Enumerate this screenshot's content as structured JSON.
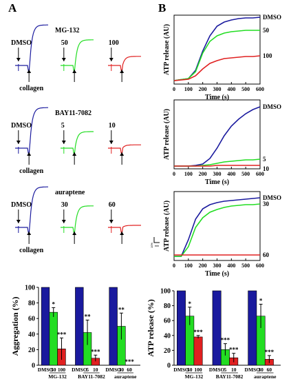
{
  "panels": {
    "a_label": "A",
    "b_label": "B"
  },
  "traces": {
    "rows": [
      {
        "drug": "MG-132",
        "doses": [
          "DMSO",
          "50",
          "100"
        ],
        "collagen": "collagen",
        "aggregation_max_fraction": [
          0.98,
          0.62,
          0.22
        ]
      },
      {
        "drug": "BAY11-7082",
        "doses": [
          "DMSO",
          "5",
          "10"
        ],
        "collagen": "collagen",
        "aggregation_max_fraction": [
          0.98,
          0.4,
          0.08
        ]
      },
      {
        "drug": "auraptene",
        "doses": [
          "DMSO",
          "30",
          "60"
        ],
        "collagen": "collagen",
        "aggregation_max_fraction": [
          0.98,
          0.52,
          0.05
        ]
      }
    ],
    "scale": {
      "vertical": "10%",
      "horizontal": "min"
    }
  },
  "colors": {
    "dmso": "#1a1a9e",
    "low": "#22dd22",
    "high": "#e02020",
    "axis": "#000000"
  },
  "chart_data": [
    {
      "type": "line",
      "title": "",
      "xlabel": "Time (s)",
      "ylabel": "ATP release (AU)",
      "xlim": [
        0,
        600
      ],
      "xticks": [
        "0",
        "100",
        "200",
        "300",
        "400",
        "500",
        "600"
      ],
      "series": [
        {
          "name": "DMSO",
          "x": [
            0,
            100,
            150,
            200,
            250,
            300,
            350,
            400,
            450,
            500,
            550,
            600
          ],
          "y": [
            0.05,
            0.08,
            0.2,
            0.48,
            0.7,
            0.84,
            0.9,
            0.93,
            0.95,
            0.96,
            0.96,
            0.97
          ]
        },
        {
          "name": "50",
          "x": [
            0,
            100,
            150,
            200,
            250,
            300,
            350,
            400,
            450,
            500,
            550,
            600
          ],
          "y": [
            0.05,
            0.08,
            0.18,
            0.45,
            0.62,
            0.7,
            0.74,
            0.76,
            0.77,
            0.78,
            0.78,
            0.78
          ]
        },
        {
          "name": "100",
          "x": [
            0,
            100,
            150,
            200,
            250,
            300,
            350,
            400,
            450,
            500,
            550,
            600
          ],
          "y": [
            0.05,
            0.07,
            0.12,
            0.22,
            0.3,
            0.34,
            0.37,
            0.38,
            0.39,
            0.4,
            0.4,
            0.41
          ]
        }
      ]
    },
    {
      "type": "line",
      "title": "",
      "xlabel": "Time (s)",
      "ylabel": "ATP release (AU)",
      "xlim": [
        0,
        600
      ],
      "xticks": [
        "0",
        "100",
        "200",
        "300",
        "400",
        "500",
        "600"
      ],
      "series": [
        {
          "name": "DMSO",
          "x": [
            0,
            100,
            150,
            200,
            250,
            300,
            350,
            400,
            450,
            500,
            550,
            600
          ],
          "y": [
            0.04,
            0.04,
            0.05,
            0.07,
            0.15,
            0.3,
            0.48,
            0.62,
            0.72,
            0.8,
            0.86,
            0.9
          ]
        },
        {
          "name": "5",
          "x": [
            0,
            100,
            150,
            200,
            250,
            300,
            350,
            400,
            450,
            500,
            550,
            600
          ],
          "y": [
            0.04,
            0.04,
            0.04,
            0.05,
            0.06,
            0.08,
            0.1,
            0.11,
            0.12,
            0.13,
            0.13,
            0.14
          ]
        },
        {
          "name": "10",
          "x": [
            0,
            100,
            150,
            200,
            250,
            300,
            350,
            400,
            450,
            500,
            550,
            600
          ],
          "y": [
            0.04,
            0.04,
            0.04,
            0.04,
            0.04,
            0.05,
            0.05,
            0.05,
            0.05,
            0.05,
            0.05,
            0.05
          ]
        }
      ]
    },
    {
      "type": "line",
      "title": "",
      "xlabel": "Time (s)",
      "ylabel": "ATP release (AU)",
      "xlim": [
        0,
        600
      ],
      "xticks": [
        "0",
        "100",
        "200",
        "300",
        "400",
        "500",
        "600"
      ],
      "series": [
        {
          "name": "DMSO",
          "x": [
            0,
            50,
            100,
            150,
            200,
            250,
            300,
            350,
            400,
            450,
            500,
            550,
            600
          ],
          "y": [
            0.06,
            0.06,
            0.3,
            0.6,
            0.75,
            0.81,
            0.84,
            0.86,
            0.87,
            0.88,
            0.89,
            0.9,
            0.91
          ]
        },
        {
          "name": "30",
          "x": [
            0,
            50,
            100,
            150,
            200,
            250,
            300,
            350,
            400,
            450,
            500,
            550,
            600
          ],
          "y": [
            0.06,
            0.06,
            0.2,
            0.48,
            0.62,
            0.7,
            0.74,
            0.77,
            0.79,
            0.8,
            0.81,
            0.81,
            0.82
          ]
        },
        {
          "name": "60",
          "x": [
            0,
            50,
            100,
            150,
            200,
            250,
            300,
            350,
            400,
            450,
            500,
            550,
            600
          ],
          "y": [
            0.08,
            0.08,
            0.08,
            0.08,
            0.08,
            0.08,
            0.08,
            0.08,
            0.08,
            0.08,
            0.08,
            0.08,
            0.08
          ]
        }
      ]
    },
    {
      "type": "bar",
      "title": "",
      "xlabel": "",
      "ylabel": "Aggregation (%)",
      "ylim": [
        0,
        100
      ],
      "yticks": [
        "0",
        "20",
        "40",
        "60",
        "80",
        "100"
      ],
      "groups": [
        {
          "name": "MG-132",
          "categories": [
            "DMSO",
            "50",
            "100"
          ],
          "values": [
            100,
            68,
            21
          ],
          "errors": [
            0,
            6,
            14
          ],
          "stars": [
            "",
            "*",
            "***"
          ]
        },
        {
          "name": "BAY11-7082",
          "categories": [
            "DMSO",
            "5",
            "10"
          ],
          "values": [
            100,
            42,
            9
          ],
          "errors": [
            0,
            16,
            4
          ],
          "stars": [
            "",
            "**",
            "***"
          ]
        },
        {
          "name": "auraptene",
          "categories": [
            "DMSO",
            "30",
            "60"
          ],
          "values": [
            100,
            50,
            0
          ],
          "errors": [
            0,
            17,
            0
          ],
          "stars": [
            "",
            "**",
            "***"
          ]
        }
      ]
    },
    {
      "type": "bar",
      "title": "",
      "xlabel": "",
      "ylabel": "ATP release (%)",
      "ylim": [
        0,
        100
      ],
      "yticks": [
        "0",
        "20",
        "40",
        "60",
        "80",
        "100"
      ],
      "groups": [
        {
          "name": "MG-132",
          "categories": [
            "DMSO",
            "50",
            "100"
          ],
          "values": [
            100,
            66,
            38
          ],
          "errors": [
            0,
            12,
            2
          ],
          "stars": [
            "",
            "*",
            "***"
          ]
        },
        {
          "name": "BAY11-7082",
          "categories": [
            "DMSO",
            "5",
            "10"
          ],
          "values": [
            100,
            21,
            10
          ],
          "errors": [
            0,
            8,
            6
          ],
          "stars": [
            "",
            "***",
            "***"
          ]
        },
        {
          "name": "auraptene",
          "categories": [
            "DMSO",
            "30",
            "60"
          ],
          "values": [
            100,
            66,
            8
          ],
          "errors": [
            0,
            16,
            5
          ],
          "stars": [
            "",
            "*",
            "***"
          ]
        }
      ]
    }
  ]
}
